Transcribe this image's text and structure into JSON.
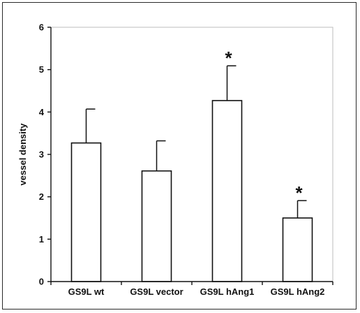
{
  "chart_data": {
    "type": "bar",
    "categories": [
      "GS9L wt",
      "GS9L vector",
      "GS9L hAng1",
      "GS9L hAng2"
    ],
    "values": [
      3.27,
      2.61,
      4.27,
      1.5
    ],
    "error_upper": [
      4.07,
      3.32,
      5.09,
      1.91
    ],
    "annotations": [
      "",
      "",
      "*",
      "*"
    ],
    "title": "",
    "xlabel": "",
    "ylabel": "vessel density",
    "ylim": [
      0,
      6
    ],
    "yticks": [
      "0",
      "1",
      "2",
      "3",
      "4",
      "5",
      "6"
    ],
    "grid": false,
    "legend": "none",
    "colors": {
      "bar_fill": "#ffffff",
      "bar_stroke": "#111111",
      "axis": "#111111",
      "frame": "#2a2a2a"
    }
  }
}
